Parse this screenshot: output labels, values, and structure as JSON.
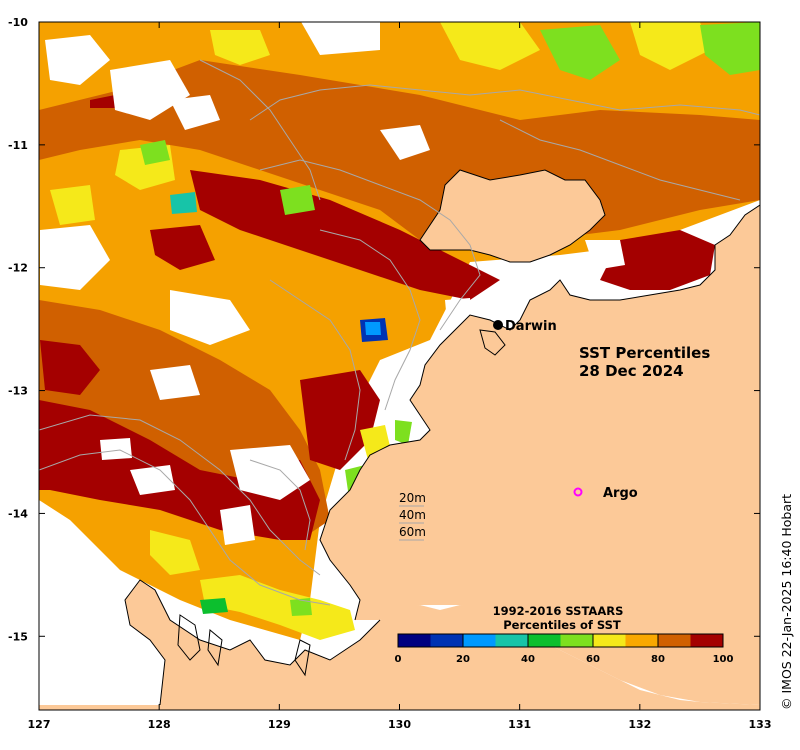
{
  "title_line1": "SST Percentiles",
  "title_line2": "28 Dec 2024",
  "copyright": "© IMOS 22-Jan-2025 16:40 Hobart",
  "places": [
    {
      "name": "Darwin",
      "lon": 130.85,
      "lat": -12.45,
      "marker": "dot"
    },
    {
      "name": "Argo",
      "lon": 131.55,
      "lat": -13.8,
      "marker": "ring"
    }
  ],
  "depth_contours": [
    "20m",
    "40m",
    "60m"
  ],
  "colorbar": {
    "title_line1": "1992-2016 SSTAARS",
    "title_line2": "Percentiles of SST",
    "tick_labels": [
      "0",
      "20",
      "40",
      "60",
      "80",
      "100"
    ],
    "colors": [
      "#000080",
      "#0033b3",
      "#0099ff",
      "#17c4a8",
      "#0cbf2e",
      "#7de01f",
      "#f5e91a",
      "#f9a800",
      "#d06000",
      "#a40000"
    ]
  },
  "axes": {
    "lon_range": [
      127,
      133
    ],
    "lat_range": [
      -15.6,
      -10
    ],
    "x_ticks": [
      "127",
      "128",
      "129",
      "130",
      "131",
      "132",
      "133"
    ],
    "y_ticks": [
      "-10",
      "-11",
      "-12",
      "-13",
      "-14",
      "-15"
    ]
  },
  "colors": {
    "land": "#fcc998",
    "no_data": "#ffffff",
    "coast": "#000000",
    "contour": "#a8a8a8",
    "argo_marker": "#ff00ff"
  }
}
